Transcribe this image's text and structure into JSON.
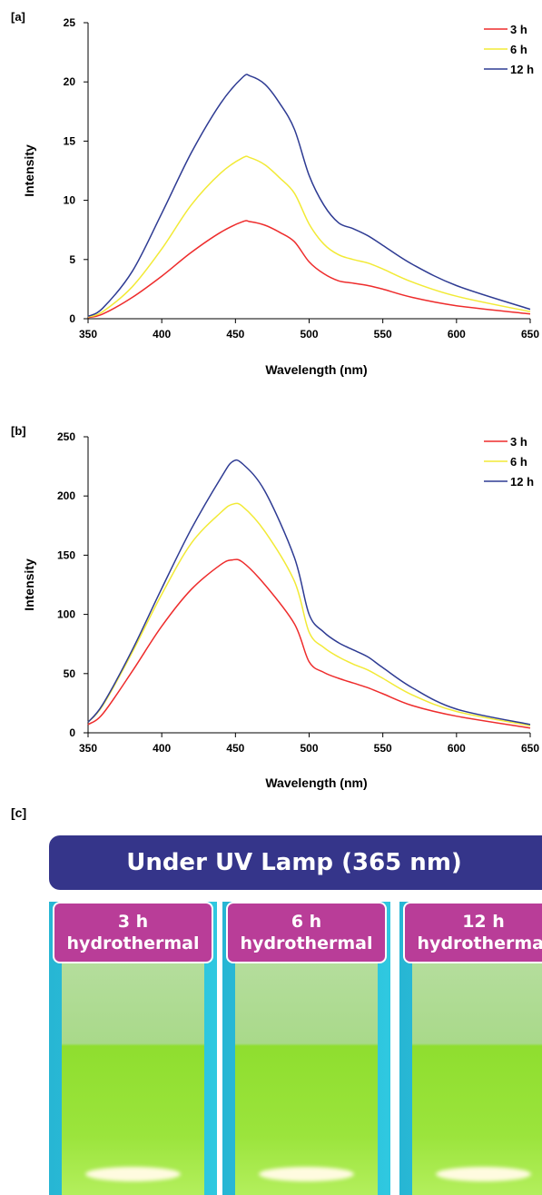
{
  "chart_data": [
    {
      "panel_label": "[a]",
      "type": "line",
      "xlabel": "Wavelength (nm)",
      "ylabel": "Intensity",
      "xlim": [
        350,
        650
      ],
      "ylim": [
        0,
        25
      ],
      "xticks": [
        350,
        400,
        450,
        500,
        550,
        600,
        650
      ],
      "yticks": [
        0,
        5,
        10,
        15,
        20,
        25
      ],
      "legend_position": "top-right",
      "series": [
        {
          "name": "3 h",
          "color": "#ee2c2c",
          "x": [
            350,
            360,
            380,
            400,
            420,
            440,
            455,
            460,
            470,
            480,
            490,
            500,
            510,
            520,
            530,
            540,
            550,
            570,
            600,
            650
          ],
          "y": [
            0.1,
            0.4,
            1.8,
            3.6,
            5.6,
            7.3,
            8.2,
            8.2,
            7.9,
            7.3,
            6.5,
            4.8,
            3.8,
            3.2,
            3.0,
            2.8,
            2.5,
            1.8,
            1.1,
            0.4
          ]
        },
        {
          "name": "6 h",
          "color": "#f2ea36",
          "x": [
            350,
            360,
            380,
            400,
            420,
            440,
            455,
            460,
            470,
            480,
            490,
            500,
            510,
            520,
            530,
            540,
            550,
            570,
            600,
            650
          ],
          "y": [
            0.15,
            0.6,
            2.7,
            5.9,
            9.6,
            12.3,
            13.6,
            13.6,
            13.0,
            11.9,
            10.6,
            8.0,
            6.3,
            5.4,
            5.0,
            4.7,
            4.2,
            3.1,
            1.9,
            0.6
          ]
        },
        {
          "name": "12 h",
          "color": "#2e3b93",
          "x": [
            350,
            360,
            380,
            400,
            420,
            440,
            455,
            460,
            470,
            480,
            490,
            500,
            510,
            520,
            530,
            540,
            550,
            570,
            600,
            650
          ],
          "y": [
            0.2,
            0.9,
            4.0,
            8.9,
            14.0,
            18.2,
            20.4,
            20.5,
            19.8,
            18.2,
            16.0,
            12.1,
            9.6,
            8.1,
            7.6,
            7.0,
            6.2,
            4.6,
            2.8,
            0.8
          ]
        }
      ]
    },
    {
      "panel_label": "[b]",
      "type": "line",
      "xlabel": "Wavelength (nm)",
      "ylabel": "Intensity",
      "xlim": [
        350,
        650
      ],
      "ylim": [
        0,
        250
      ],
      "xticks": [
        350,
        400,
        450,
        500,
        550,
        600,
        650
      ],
      "yticks": [
        0,
        50,
        100,
        150,
        200,
        250
      ],
      "legend_position": "top-right",
      "series": [
        {
          "name": "3 h",
          "color": "#ee2c2c",
          "x": [
            350,
            360,
            380,
            400,
            420,
            440,
            448,
            455,
            470,
            490,
            500,
            510,
            520,
            530,
            540,
            550,
            570,
            600,
            650
          ],
          "y": [
            7,
            16,
            52,
            90,
            121,
            142,
            146,
            144,
            125,
            92,
            60,
            51,
            46,
            42,
            38,
            33,
            23,
            14,
            4
          ]
        },
        {
          "name": "6 h",
          "color": "#f2ea36",
          "x": [
            350,
            360,
            380,
            400,
            420,
            440,
            448,
            455,
            470,
            490,
            500,
            510,
            520,
            530,
            540,
            550,
            570,
            600,
            650
          ],
          "y": [
            9,
            23,
            68,
            117,
            160,
            186,
            193,
            191,
            170,
            128,
            85,
            72,
            64,
            58,
            53,
            46,
            32,
            18,
            6
          ]
        },
        {
          "name": "12 h",
          "color": "#2e3b93",
          "x": [
            350,
            360,
            380,
            400,
            420,
            440,
            448,
            455,
            470,
            490,
            500,
            510,
            520,
            530,
            540,
            550,
            570,
            600,
            650
          ],
          "y": [
            9,
            24,
            70,
            122,
            172,
            215,
            229,
            227,
            204,
            148,
            100,
            85,
            76,
            70,
            64,
            55,
            38,
            20,
            7
          ]
        }
      ]
    }
  ],
  "panel_c": {
    "label": "[c]",
    "banner": "Under UV Lamp (365 nm)",
    "banner_color": "#35358a",
    "tag_color": "#b93d98",
    "vials": [
      {
        "line1": "3 h",
        "line2": "hydrothermal"
      },
      {
        "line1": "6 h",
        "line2": "hydrothermal"
      },
      {
        "line1": "12 h",
        "line2": "hydrothermal"
      }
    ]
  }
}
